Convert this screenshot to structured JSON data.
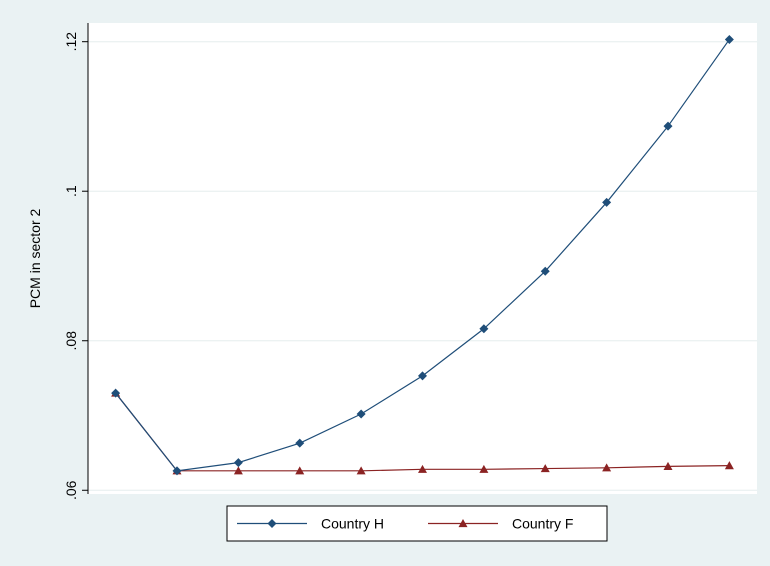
{
  "chart_data": {
    "type": "line",
    "ylabel": "PCM in sector 2",
    "xlabel": "",
    "ylim": [
      0.0595,
      0.1225
    ],
    "yticks": [
      0.06,
      0.08,
      0.1,
      0.12
    ],
    "ytick_labels": [
      ".06",
      ".08",
      ".1",
      ".12"
    ],
    "x": [
      1,
      2,
      3,
      4,
      5,
      6,
      7,
      8,
      9,
      10,
      11
    ],
    "xlim": [
      0.55,
      11.45
    ],
    "grid": true,
    "legend_position": "bottom",
    "series": [
      {
        "name": "Country H",
        "color": "#1f4e79",
        "marker": "diamond",
        "values": [
          0.073,
          0.0626,
          0.0637,
          0.0663,
          0.0702,
          0.0753,
          0.0816,
          0.0893,
          0.0985,
          0.1087,
          0.1203
        ]
      },
      {
        "name": "Country F",
        "color": "#8b2323",
        "marker": "triangle",
        "values": [
          0.073,
          0.0626,
          0.0626,
          0.0626,
          0.0626,
          0.0628,
          0.0628,
          0.0629,
          0.063,
          0.0632,
          0.0633
        ]
      }
    ]
  }
}
